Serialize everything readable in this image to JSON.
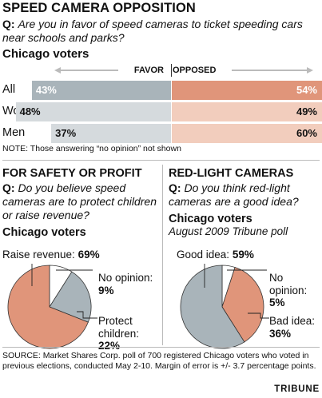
{
  "header": {
    "title": "SPEED CAMERA OPPOSITION",
    "q_label": "Q:",
    "question": "Are you in favor of speed cameras to ticket speeding cars near schools and parks?",
    "subhead": "Chicago voters",
    "legend_favor": "FAVOR",
    "legend_opposed": "OPPOSED"
  },
  "note": "NOTE: Those answering “no opinion” not shown",
  "left": {
    "title": "FOR SAFETY OR PROFIT",
    "q_label": "Q:",
    "question": "Do you believe speed cameras are to protect children or raise revenue?",
    "subhead": "Chicago voters",
    "label_raise": "Raise revenue:",
    "label_raise_val": "69%",
    "label_noop": "No opinion:",
    "label_noop_val": "9%",
    "label_protect": "Protect children:",
    "label_protect_val": "22%"
  },
  "right": {
    "title": "RED-LIGHT CAMERAS",
    "q_label": "Q:",
    "question": "Do you think red-light cameras are a good idea?",
    "subhead": "Chicago voters",
    "subtitle": "August 2009 Tribune poll",
    "label_good": "Good idea:",
    "label_good_val": "59%",
    "label_noop": "No opinion:",
    "label_noop_val": "5%",
    "label_bad": "Bad idea:",
    "label_bad_val": "36%"
  },
  "source": "SOURCE: Market Shares Corp. poll of 700 registered Chicago voters who voted in previous elections, conducted May 2-10. Margin of error is +/- 3.7 percentage points.",
  "brand": "TRIBUNE",
  "colors": {
    "favor_strong": "#a9b4ba",
    "opposed_strong": "#e0957a",
    "favor_light": "#d5dadd",
    "opposed_light": "#f2cdbd",
    "pie_revenue": "#e0957a",
    "pie_protect": "#a9b4ba",
    "pie_noop": "#ffffff"
  },
  "chart_data": [
    {
      "type": "bar",
      "title": "SPEED CAMERA OPPOSITION",
      "categories": [
        "All",
        "Women",
        "Men"
      ],
      "series": [
        {
          "name": "FAVOR",
          "values": [
            43,
            48,
            37
          ]
        },
        {
          "name": "OPPOSED",
          "values": [
            54,
            49,
            60
          ]
        }
      ],
      "value_labels_favor": [
        "43%",
        "48%",
        "37%"
      ],
      "value_labels_opposed": [
        "54%",
        "49%",
        "60%"
      ]
    },
    {
      "type": "pie",
      "title": "FOR SAFETY OR PROFIT",
      "categories": [
        "Raise revenue",
        "Protect children",
        "No opinion"
      ],
      "values": [
        69,
        22,
        9
      ]
    },
    {
      "type": "pie",
      "title": "RED-LIGHT CAMERAS",
      "categories": [
        "Good idea",
        "Bad idea",
        "No opinion"
      ],
      "values": [
        59,
        36,
        5
      ]
    }
  ]
}
